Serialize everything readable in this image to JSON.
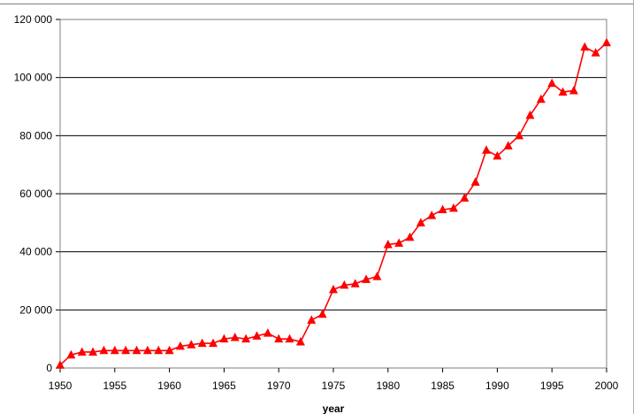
{
  "colors": {
    "series": "#ff0000",
    "grid": "#000000",
    "plot_border": "#808080"
  },
  "chart_data": {
    "type": "line",
    "xlabel": "year",
    "ylabel": "",
    "xlim": [
      1950,
      2000
    ],
    "ylim": [
      0,
      120000
    ],
    "grid": "horizontal",
    "marker": "triangle",
    "x_ticks": [
      1950,
      1955,
      1960,
      1965,
      1970,
      1975,
      1980,
      1985,
      1990,
      1995,
      2000
    ],
    "x_tick_labels": [
      "1950",
      "1955",
      "1960",
      "1965",
      "1970",
      "1975",
      "1980",
      "1985",
      "1990",
      "1995",
      "2000"
    ],
    "y_ticks": [
      0,
      20000,
      40000,
      60000,
      80000,
      100000,
      120000
    ],
    "y_tick_labels": [
      "0",
      "20 000",
      "40 000",
      "60 000",
      "80 000",
      "100 000",
      "120 000"
    ],
    "series": [
      {
        "x": [
          1950,
          1951,
          1952,
          1953,
          1954,
          1955,
          1956,
          1957,
          1958,
          1959,
          1960,
          1961,
          1962,
          1963,
          1964,
          1965,
          1966,
          1967,
          1968,
          1969,
          1970,
          1971,
          1972,
          1973,
          1974,
          1975,
          1976,
          1977,
          1978,
          1979,
          1980,
          1981,
          1982,
          1983,
          1984,
          1985,
          1986,
          1987,
          1988,
          1989,
          1990,
          1991,
          1992,
          1993,
          1994,
          1995,
          1996,
          1997,
          1998,
          1999,
          2000
        ],
        "values": [
          1000,
          4500,
          5500,
          5500,
          6000,
          6000,
          6000,
          6000,
          6000,
          6000,
          6000,
          7500,
          8000,
          8500,
          8500,
          10000,
          10500,
          10000,
          11000,
          12000,
          10000,
          10000,
          9000,
          16500,
          18500,
          27000,
          28500,
          29000,
          30500,
          31500,
          42500,
          43000,
          45000,
          50000,
          52500,
          54500,
          55000,
          58500,
          64000,
          75000,
          73000,
          76500,
          80000,
          87000,
          92500,
          98000,
          95000,
          95500,
          110500,
          108500,
          112000
        ]
      }
    ]
  }
}
